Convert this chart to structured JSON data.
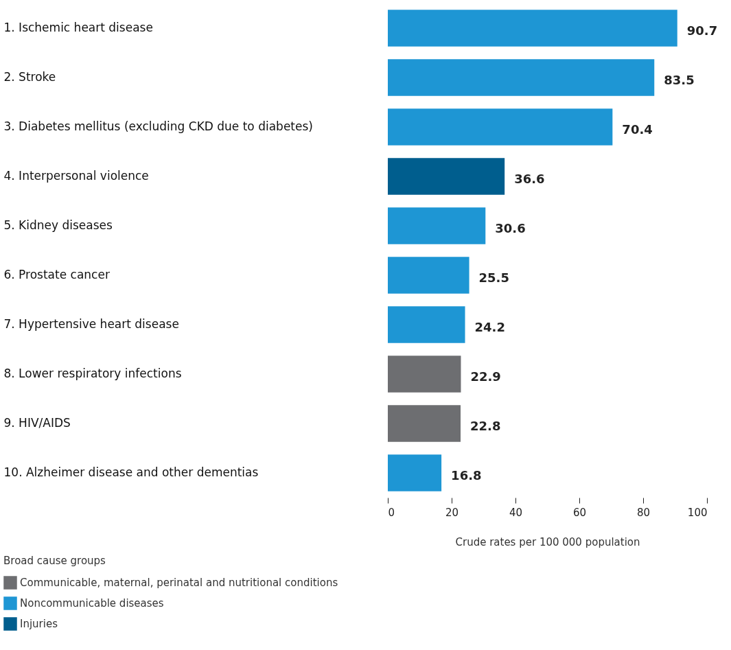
{
  "chart_data": {
    "type": "bar",
    "orientation": "horizontal",
    "xlabel": "Crude rates per 100 000 population",
    "legend_title": "Broad cause groups",
    "legend": "bottom left",
    "data_labels": true,
    "grid": false,
    "categories": [
      "1. Ischemic heart disease",
      "2. Stroke",
      "3. Diabetes mellitus (excluding CKD due to diabetes)",
      "4. Interpersonal violence",
      "5. Kidney diseases",
      "6. Prostate cancer",
      "7. Hypertensive heart disease",
      "8. Lower respiratory infections",
      "9. HIV/AIDS",
      "10. Alzheimer disease and other dementias"
    ],
    "xlim": [
      0,
      100
    ],
    "xticks": [
      0,
      20,
      40,
      60,
      80,
      100
    ],
    "series": [
      {
        "name": "Communicable, maternal, perinatal and nutritional conditions",
        "color": "#6d6e71",
        "values": [
          null,
          null,
          null,
          null,
          null,
          null,
          null,
          22.9,
          22.8,
          null
        ]
      },
      {
        "name": "Noncommunicable diseases",
        "color": "#1e96d4",
        "values": [
          90.7,
          83.5,
          70.4,
          null,
          30.6,
          25.5,
          24.2,
          null,
          null,
          16.8
        ]
      },
      {
        "name": "Injuries",
        "color": "#005e8e",
        "values": [
          null,
          null,
          null,
          36.6,
          null,
          null,
          null,
          null,
          null,
          null
        ]
      }
    ]
  }
}
